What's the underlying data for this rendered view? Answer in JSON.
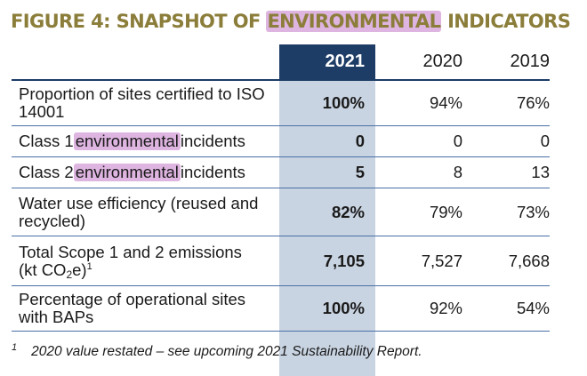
{
  "title": {
    "prefix": "FIGURE 4: SNAPSHOT OF ",
    "highlight": "ENVIRONMENTAL",
    "suffix": " INDICATORS",
    "color": "#8b7d3a",
    "highlight_color": "#deb4e0"
  },
  "table": {
    "headers": [
      "2021",
      "2020",
      "2019"
    ],
    "header_bg": "#1d3c66",
    "highlight_col_bg": "#c9d4e2",
    "rows": [
      {
        "label": "Proportion of sites certified to ISO 14001",
        "v2021": "100%",
        "v2020": "94%",
        "v2019": "76%"
      },
      {
        "label_before": "Class 1 ",
        "label_highlight": "environmental",
        "label_after": " incidents",
        "v2021": "0",
        "v2020": "0",
        "v2019": "0"
      },
      {
        "label_before": "Class 2 ",
        "label_highlight": "environmental",
        "label_after": " incidents",
        "v2021": "5",
        "v2020": "8",
        "v2019": "13"
      },
      {
        "label": "Water use efficiency (reused and recycled)",
        "v2021": "82%",
        "v2020": "79%",
        "v2019": "73%"
      },
      {
        "label_line1": "Total Scope 1 and 2 emissions",
        "label_l2a": "(kt CO",
        "label_sub": "2",
        "label_l2b": "e)",
        "label_sup": "1",
        "v2021": "7,105",
        "v2020": "7,527",
        "v2019": "7,668"
      },
      {
        "label": "Percentage of operational sites with BAPs",
        "v2021": "100%",
        "v2020": "92%",
        "v2019": "54%"
      }
    ]
  },
  "footnote": {
    "marker": "1",
    "text": "2020 value restated – see upcoming 2021 Sustainability Report."
  }
}
